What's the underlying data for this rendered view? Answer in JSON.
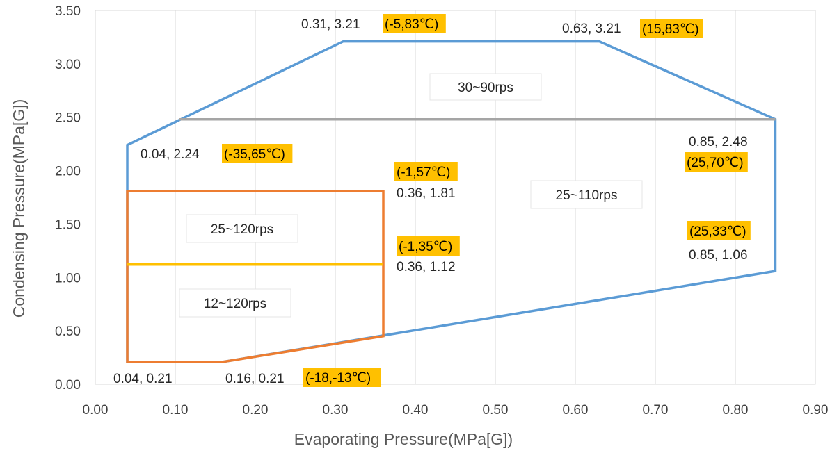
{
  "chart_data": {
    "type": "line",
    "xlabel": "Evaporating Pressure(MPa[G])",
    "ylabel": "Condensing Pressure(MPa[G])",
    "xlim": [
      0,
      0.9
    ],
    "ylim": [
      0,
      3.5
    ],
    "x_ticks": [
      "0.00",
      "0.10",
      "0.20",
      "0.30",
      "0.40",
      "0.50",
      "0.60",
      "0.70",
      "0.80",
      "0.90"
    ],
    "y_ticks": [
      "0.00",
      "0.50",
      "1.00",
      "1.50",
      "2.00",
      "2.50",
      "3.00",
      "3.50"
    ],
    "grid": "vertical",
    "series": [
      {
        "color": "#5b9bd5",
        "closed": true,
        "points": [
          [
            0.04,
            0.21
          ],
          [
            0.04,
            2.24
          ],
          [
            0.31,
            3.21
          ],
          [
            0.63,
            3.21
          ],
          [
            0.85,
            2.48
          ],
          [
            0.85,
            1.06
          ],
          [
            0.16,
            0.21
          ]
        ]
      },
      {
        "color": "#a5a5a5",
        "closed": false,
        "points": [
          [
            0.105,
            2.48
          ],
          [
            0.85,
            2.48
          ]
        ]
      },
      {
        "color": "#ed7d31",
        "closed": true,
        "points": [
          [
            0.04,
            0.21
          ],
          [
            0.04,
            1.81
          ],
          [
            0.36,
            1.81
          ],
          [
            0.36,
            0.45
          ],
          [
            0.16,
            0.21
          ]
        ]
      },
      {
        "color": "#ffc000",
        "closed": false,
        "points": [
          [
            0.04,
            1.12
          ],
          [
            0.36,
            1.12
          ]
        ]
      }
    ],
    "point_labels": [
      {
        "x": 0.04,
        "y": 0.21,
        "text": "0.04, 0.21",
        "temp": ""
      },
      {
        "x": 0.16,
        "y": 0.21,
        "text": "0.16, 0.21",
        "temp": "(-18,-13℃)"
      },
      {
        "x": 0.04,
        "y": 2.24,
        "text": "0.04, 2.24",
        "temp": "(-35,65℃)"
      },
      {
        "x": 0.31,
        "y": 3.21,
        "text": "0.31, 3.21",
        "temp": "(-5,83℃)"
      },
      {
        "x": 0.63,
        "y": 3.21,
        "text": "0.63, 3.21",
        "temp": "(15,83℃)"
      },
      {
        "x": 0.85,
        "y": 2.48,
        "text": "0.85, 2.48",
        "temp": "(25,70℃)"
      },
      {
        "x": 0.85,
        "y": 1.06,
        "text": "0.85, 1.06",
        "temp": "(25,33℃)"
      },
      {
        "x": 0.36,
        "y": 1.81,
        "text": "0.36, 1.81",
        "temp": "(-1,57℃)"
      },
      {
        "x": 0.36,
        "y": 1.12,
        "text": "0.36, 1.12",
        "temp": "(-1,35℃)"
      }
    ],
    "region_labels": [
      "30~90rps",
      "25~110rps",
      "25~120rps",
      "12~120rps"
    ],
    "temp_highlight_color": "#ffc000"
  }
}
